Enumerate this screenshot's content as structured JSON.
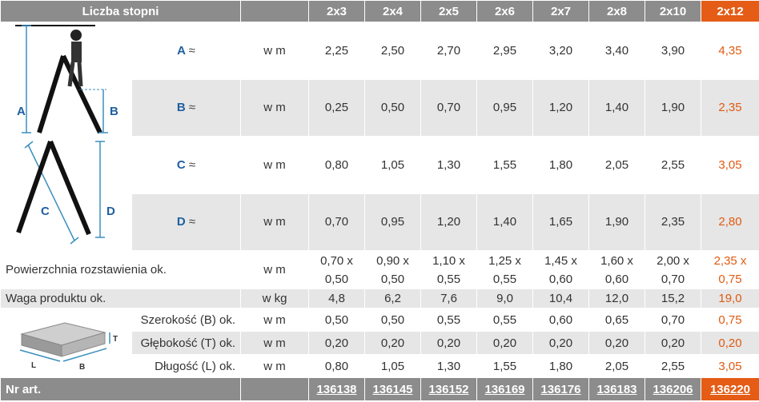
{
  "header": {
    "title": "Liczba stopni",
    "sizes": [
      "2x3",
      "2x4",
      "2x5",
      "2x6",
      "2x7",
      "2x8",
      "2x10",
      "2x12"
    ]
  },
  "dims": [
    {
      "label": "A",
      "approx": "≈",
      "unit": "w m",
      "values": [
        "2,25",
        "2,50",
        "2,70",
        "2,95",
        "3,20",
        "3,40",
        "3,90",
        "4,35"
      ]
    },
    {
      "label": "B",
      "approx": "≈",
      "unit": "w m",
      "values": [
        "0,25",
        "0,50",
        "0,70",
        "0,95",
        "1,20",
        "1,40",
        "1,90",
        "2,35"
      ]
    },
    {
      "label": "C",
      "approx": "≈",
      "unit": "w m",
      "values": [
        "0,80",
        "1,05",
        "1,30",
        "1,55",
        "1,80",
        "2,05",
        "2,55",
        "3,05"
      ]
    },
    {
      "label": "D",
      "approx": "≈",
      "unit": "w m",
      "values": [
        "0,70",
        "0,95",
        "1,20",
        "1,40",
        "1,65",
        "1,90",
        "2,35",
        "2,80"
      ]
    }
  ],
  "area": {
    "label": "Powierzchnia rozstawienia ok.",
    "unit": "w m",
    "top": [
      "0,70 x",
      "0,90 x",
      "1,10 x",
      "1,25 x",
      "1,45 x",
      "1,60 x",
      "2,00 x",
      "2,35 x"
    ],
    "bottom": [
      "0,50",
      "0,50",
      "0,55",
      "0,55",
      "0,60",
      "0,60",
      "0,70",
      "0,75"
    ]
  },
  "weight": {
    "label": "Waga produktu ok.",
    "unit": "w kg",
    "values": [
      "4,8",
      "6,2",
      "7,6",
      "9,0",
      "10,4",
      "12,0",
      "15,2",
      "19,0"
    ]
  },
  "package": [
    {
      "label": "Szerokość (B) ok.",
      "unit": "w m",
      "values": [
        "0,50",
        "0,50",
        "0,55",
        "0,55",
        "0,60",
        "0,65",
        "0,70",
        "0,75"
      ]
    },
    {
      "label": "Głębokość (T) ok.",
      "unit": "w m",
      "values": [
        "0,20",
        "0,20",
        "0,20",
        "0,20",
        "0,20",
        "0,20",
        "0,20",
        "0,20"
      ]
    },
    {
      "label": "Długość (L) ok.",
      "unit": "w m",
      "values": [
        "0,80",
        "1,05",
        "1,30",
        "1,55",
        "1,80",
        "2,05",
        "2,55",
        "3,05"
      ]
    }
  ],
  "diagram": {
    "labels": [
      "A",
      "B",
      "C",
      "D"
    ]
  },
  "box_diagram": {
    "labels": [
      "T",
      "L",
      "B"
    ]
  },
  "footer": {
    "label": "Nr art.",
    "articles": [
      "136138",
      "136145",
      "136152",
      "136169",
      "136176",
      "136183",
      "136206",
      "136220"
    ]
  },
  "colors": {
    "header": "#8c8c8c",
    "highlight": "#e45c16",
    "letter": "#1f5fa0",
    "row_gray": "#e6e6e6"
  }
}
